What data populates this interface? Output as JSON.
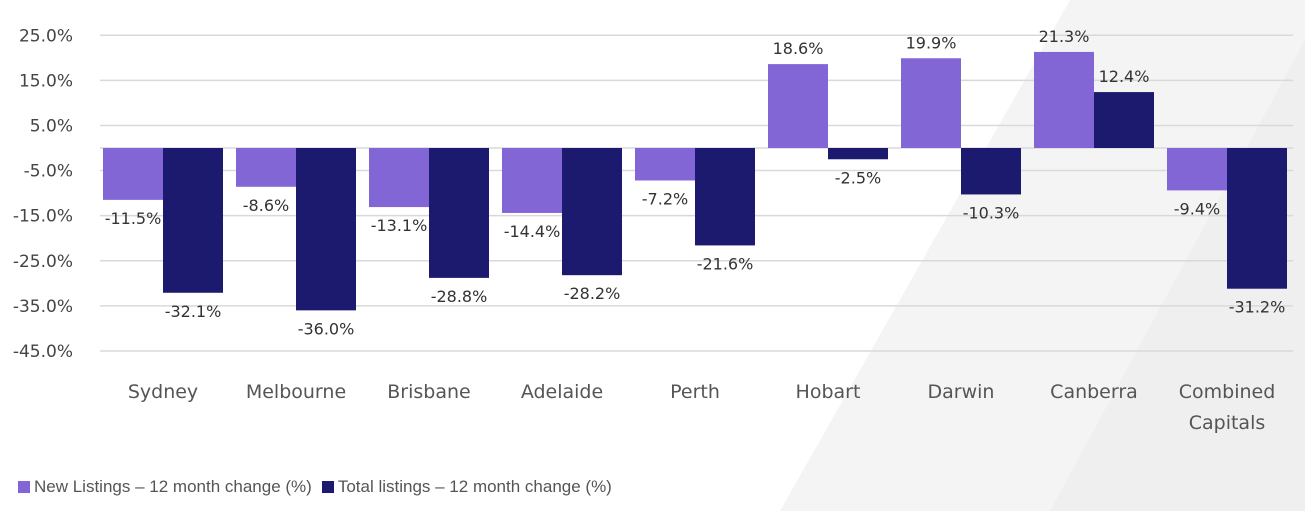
{
  "chart_data": {
    "type": "bar",
    "title": "",
    "xlabel": "",
    "ylabel": "",
    "categories": [
      "Sydney",
      "Melbourne",
      "Brisbane",
      "Adelaide",
      "Perth",
      "Hobart",
      "Darwin",
      "Canberra",
      "Combined Capitals"
    ],
    "series": [
      {
        "name": "New Listings – 12 month change (%)",
        "color": "#8266d6",
        "values": [
          -11.5,
          -8.6,
          -13.1,
          -14.4,
          -7.2,
          18.6,
          19.9,
          21.3,
          -9.4
        ],
        "labels": [
          "-11.5%",
          "-8.6%",
          "-13.1%",
          "-14.4%",
          "-7.2%",
          "18.6%",
          "19.9%",
          "21.3%",
          "-9.4%"
        ]
      },
      {
        "name": "Total listings – 12 month change (%)",
        "color": "#1b1a6e",
        "values": [
          -32.1,
          -36.0,
          -28.8,
          -28.2,
          -21.6,
          -2.5,
          -10.3,
          12.4,
          -31.2
        ],
        "labels": [
          "-32.1%",
          "-36.0%",
          "-28.8%",
          "-28.2%",
          "-21.6%",
          "-2.5%",
          "-10.3%",
          "12.4%",
          "-31.2%"
        ]
      }
    ],
    "yticks": [
      25,
      15,
      5,
      -5,
      -15,
      -25,
      -35,
      -45
    ],
    "ytick_labels": [
      "25.0%",
      "15.0%",
      "5.0%",
      "-5.0%",
      "-15.0%",
      "-25.0%",
      "-35.0%",
      "-45.0%"
    ],
    "ylim": [
      -45,
      25
    ],
    "grid": true,
    "legend_position": "bottom-left"
  }
}
